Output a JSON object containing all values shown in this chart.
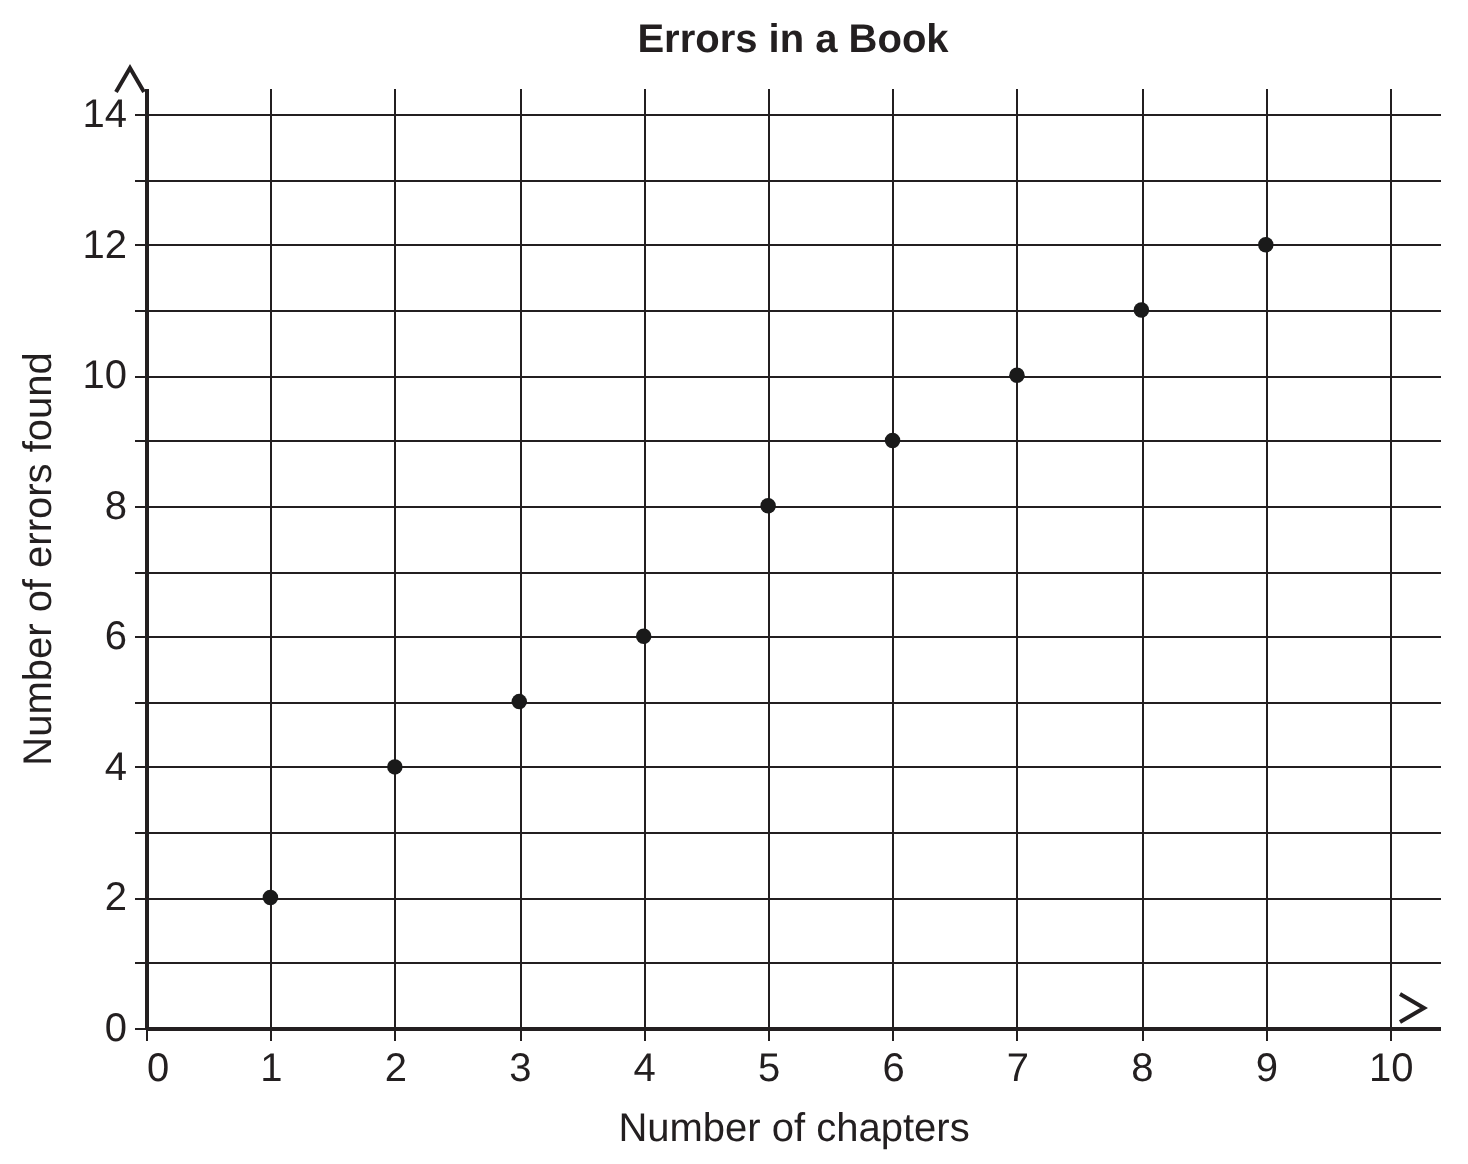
{
  "chart_data": {
    "type": "scatter",
    "title": "Errors in a Book",
    "xlabel": "Number of chapters",
    "ylabel": "Number of errors found",
    "x": [
      1,
      2,
      3,
      4,
      5,
      6,
      7,
      8,
      9
    ],
    "series": [
      {
        "color": "#1a1a1a",
        "values": [
          2,
          4,
          5,
          6,
          8,
          9,
          10,
          11,
          12
        ]
      }
    ],
    "xlim": [
      0,
      10.4
    ],
    "ylim": [
      0,
      14.4
    ],
    "xticks": [
      0,
      1,
      2,
      3,
      4,
      5,
      6,
      7,
      8,
      9,
      10
    ],
    "yticks": [
      0,
      {
        "value": 1,
        "label": null
      },
      2,
      {
        "value": 3,
        "label": null
      },
      4,
      {
        "value": 5,
        "label": null
      },
      6,
      {
        "value": 7,
        "label": null
      },
      8,
      {
        "value": 9,
        "label": null
      },
      10,
      {
        "value": 11,
        "label": null
      },
      12,
      {
        "value": 13,
        "label": null
      },
      14
    ],
    "grid": true,
    "marker": "circle"
  }
}
